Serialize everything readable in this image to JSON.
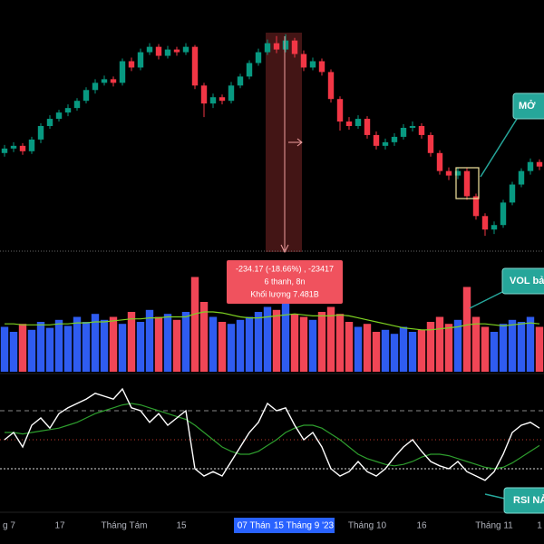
{
  "chart_data": {
    "type": "candlestick",
    "open": [
      110,
      115,
      118,
      112,
      125,
      140,
      148,
      155,
      160,
      168,
      180,
      188,
      192,
      188,
      212,
      205,
      222,
      228,
      218,
      225,
      222,
      228,
      185,
      165,
      172,
      168,
      185,
      195,
      210,
      222,
      232,
      225,
      235,
      220,
      205,
      212,
      200,
      170,
      145,
      140,
      148,
      130,
      118,
      122,
      128,
      138,
      140,
      130,
      110,
      90,
      85,
      90,
      62,
      40,
      25,
      30,
      55,
      75,
      90,
      100
    ],
    "high": [
      119,
      122,
      121,
      128,
      143,
      152,
      158,
      164,
      171,
      183,
      192,
      196,
      195,
      215,
      216,
      226,
      232,
      231,
      229,
      228,
      232,
      230,
      188,
      176,
      175,
      189,
      198,
      213,
      226,
      236,
      240,
      242,
      238,
      224,
      216,
      215,
      203,
      173,
      150,
      152,
      151,
      134,
      126,
      132,
      142,
      145,
      143,
      133,
      113,
      94,
      94,
      93,
      65,
      43,
      34,
      58,
      78,
      93,
      104,
      103
    ],
    "low": [
      106,
      111,
      108,
      109,
      121,
      137,
      145,
      151,
      157,
      165,
      176,
      185,
      184,
      185,
      201,
      202,
      219,
      214,
      215,
      218,
      219,
      181,
      150,
      160,
      164,
      165,
      182,
      192,
      207,
      219,
      221,
      222,
      216,
      201,
      202,
      196,
      166,
      135,
      136,
      137,
      126,
      114,
      114,
      118,
      125,
      134,
      126,
      106,
      86,
      80,
      81,
      58,
      36,
      18,
      20,
      27,
      52,
      72,
      86,
      91
    ],
    "close": [
      115,
      118,
      112,
      125,
      140,
      148,
      155,
      160,
      168,
      180,
      188,
      192,
      188,
      212,
      205,
      222,
      228,
      218,
      225,
      222,
      228,
      185,
      165,
      172,
      168,
      185,
      195,
      210,
      222,
      232,
      225,
      235,
      220,
      205,
      212,
      200,
      170,
      145,
      140,
      148,
      130,
      118,
      122,
      128,
      138,
      140,
      130,
      110,
      90,
      85,
      90,
      62,
      40,
      25,
      30,
      55,
      75,
      90,
      100,
      95
    ],
    "ylim": [
      0,
      280
    ],
    "up_color": "#089981",
    "down_color": "#f23645",
    "volume": {
      "values": [
        45,
        40,
        48,
        42,
        50,
        44,
        52,
        46,
        55,
        50,
        58,
        52,
        55,
        48,
        60,
        50,
        62,
        55,
        58,
        52,
        60,
        95,
        70,
        55,
        50,
        48,
        52,
        55,
        60,
        65,
        62,
        70,
        58,
        55,
        52,
        60,
        65,
        58,
        50,
        45,
        48,
        40,
        42,
        38,
        45,
        40,
        42,
        50,
        55,
        48,
        52,
        85,
        55,
        45,
        40,
        48,
        52,
        50,
        55,
        45
      ],
      "ma": [
        48,
        48,
        47,
        47,
        47,
        47,
        48,
        48,
        49,
        49,
        50,
        50,
        51,
        52,
        53,
        53,
        54,
        54,
        55,
        55,
        55,
        58,
        60,
        60,
        59,
        57,
        55,
        54,
        54,
        55,
        56,
        57,
        58,
        57,
        56,
        56,
        56,
        57,
        56,
        54,
        52,
        50,
        48,
        46,
        44,
        43,
        42,
        42,
        43,
        44,
        45,
        47,
        48,
        48,
        47,
        46,
        47,
        48,
        49,
        48
      ],
      "ylim": [
        0,
        100
      ],
      "up_color": "#2f5cf0",
      "down_color": "#f04656",
      "ma_color": "#7ed321"
    },
    "rsi": {
      "values": [
        50,
        55,
        45,
        60,
        65,
        58,
        68,
        72,
        75,
        78,
        82,
        80,
        78,
        85,
        72,
        70,
        62,
        68,
        60,
        65,
        70,
        30,
        25,
        28,
        25,
        35,
        45,
        55,
        62,
        75,
        70,
        72,
        60,
        50,
        55,
        45,
        30,
        25,
        28,
        35,
        28,
        25,
        30,
        38,
        45,
        50,
        42,
        35,
        32,
        30,
        35,
        28,
        25,
        22,
        28,
        40,
        55,
        60,
        62,
        58
      ],
      "ma": [
        55,
        55,
        54,
        55,
        56,
        57,
        58,
        60,
        62,
        65,
        68,
        70,
        72,
        74,
        75,
        74,
        72,
        70,
        68,
        66,
        64,
        60,
        55,
        50,
        45,
        42,
        40,
        40,
        42,
        46,
        50,
        55,
        58,
        60,
        60,
        58,
        54,
        50,
        45,
        40,
        37,
        35,
        33,
        32,
        33,
        35,
        38,
        40,
        40,
        39,
        37,
        35,
        33,
        31,
        30,
        31,
        34,
        38,
        42,
        46
      ],
      "ylim": [
        0,
        100
      ],
      "levels": [
        70,
        50,
        30
      ],
      "color": "#ffffff",
      "ma_color": "#2e9e2e"
    },
    "x_labels": [
      "g 7",
      "17",
      "Tháng Tám",
      "15",
      "07 Thán",
      "15 Tháng 9 '23",
      "Tháng 10",
      "16",
      "Tháng 11",
      "1"
    ],
    "tooltip": {
      "change": "-234.17 (-18.66%) , -23417",
      "bars": "6 thanh, 8n",
      "volume": "Khối lượng 7.481B"
    },
    "callouts": [
      "MỞ",
      "VOL bả",
      "RSI NẢ"
    ]
  }
}
